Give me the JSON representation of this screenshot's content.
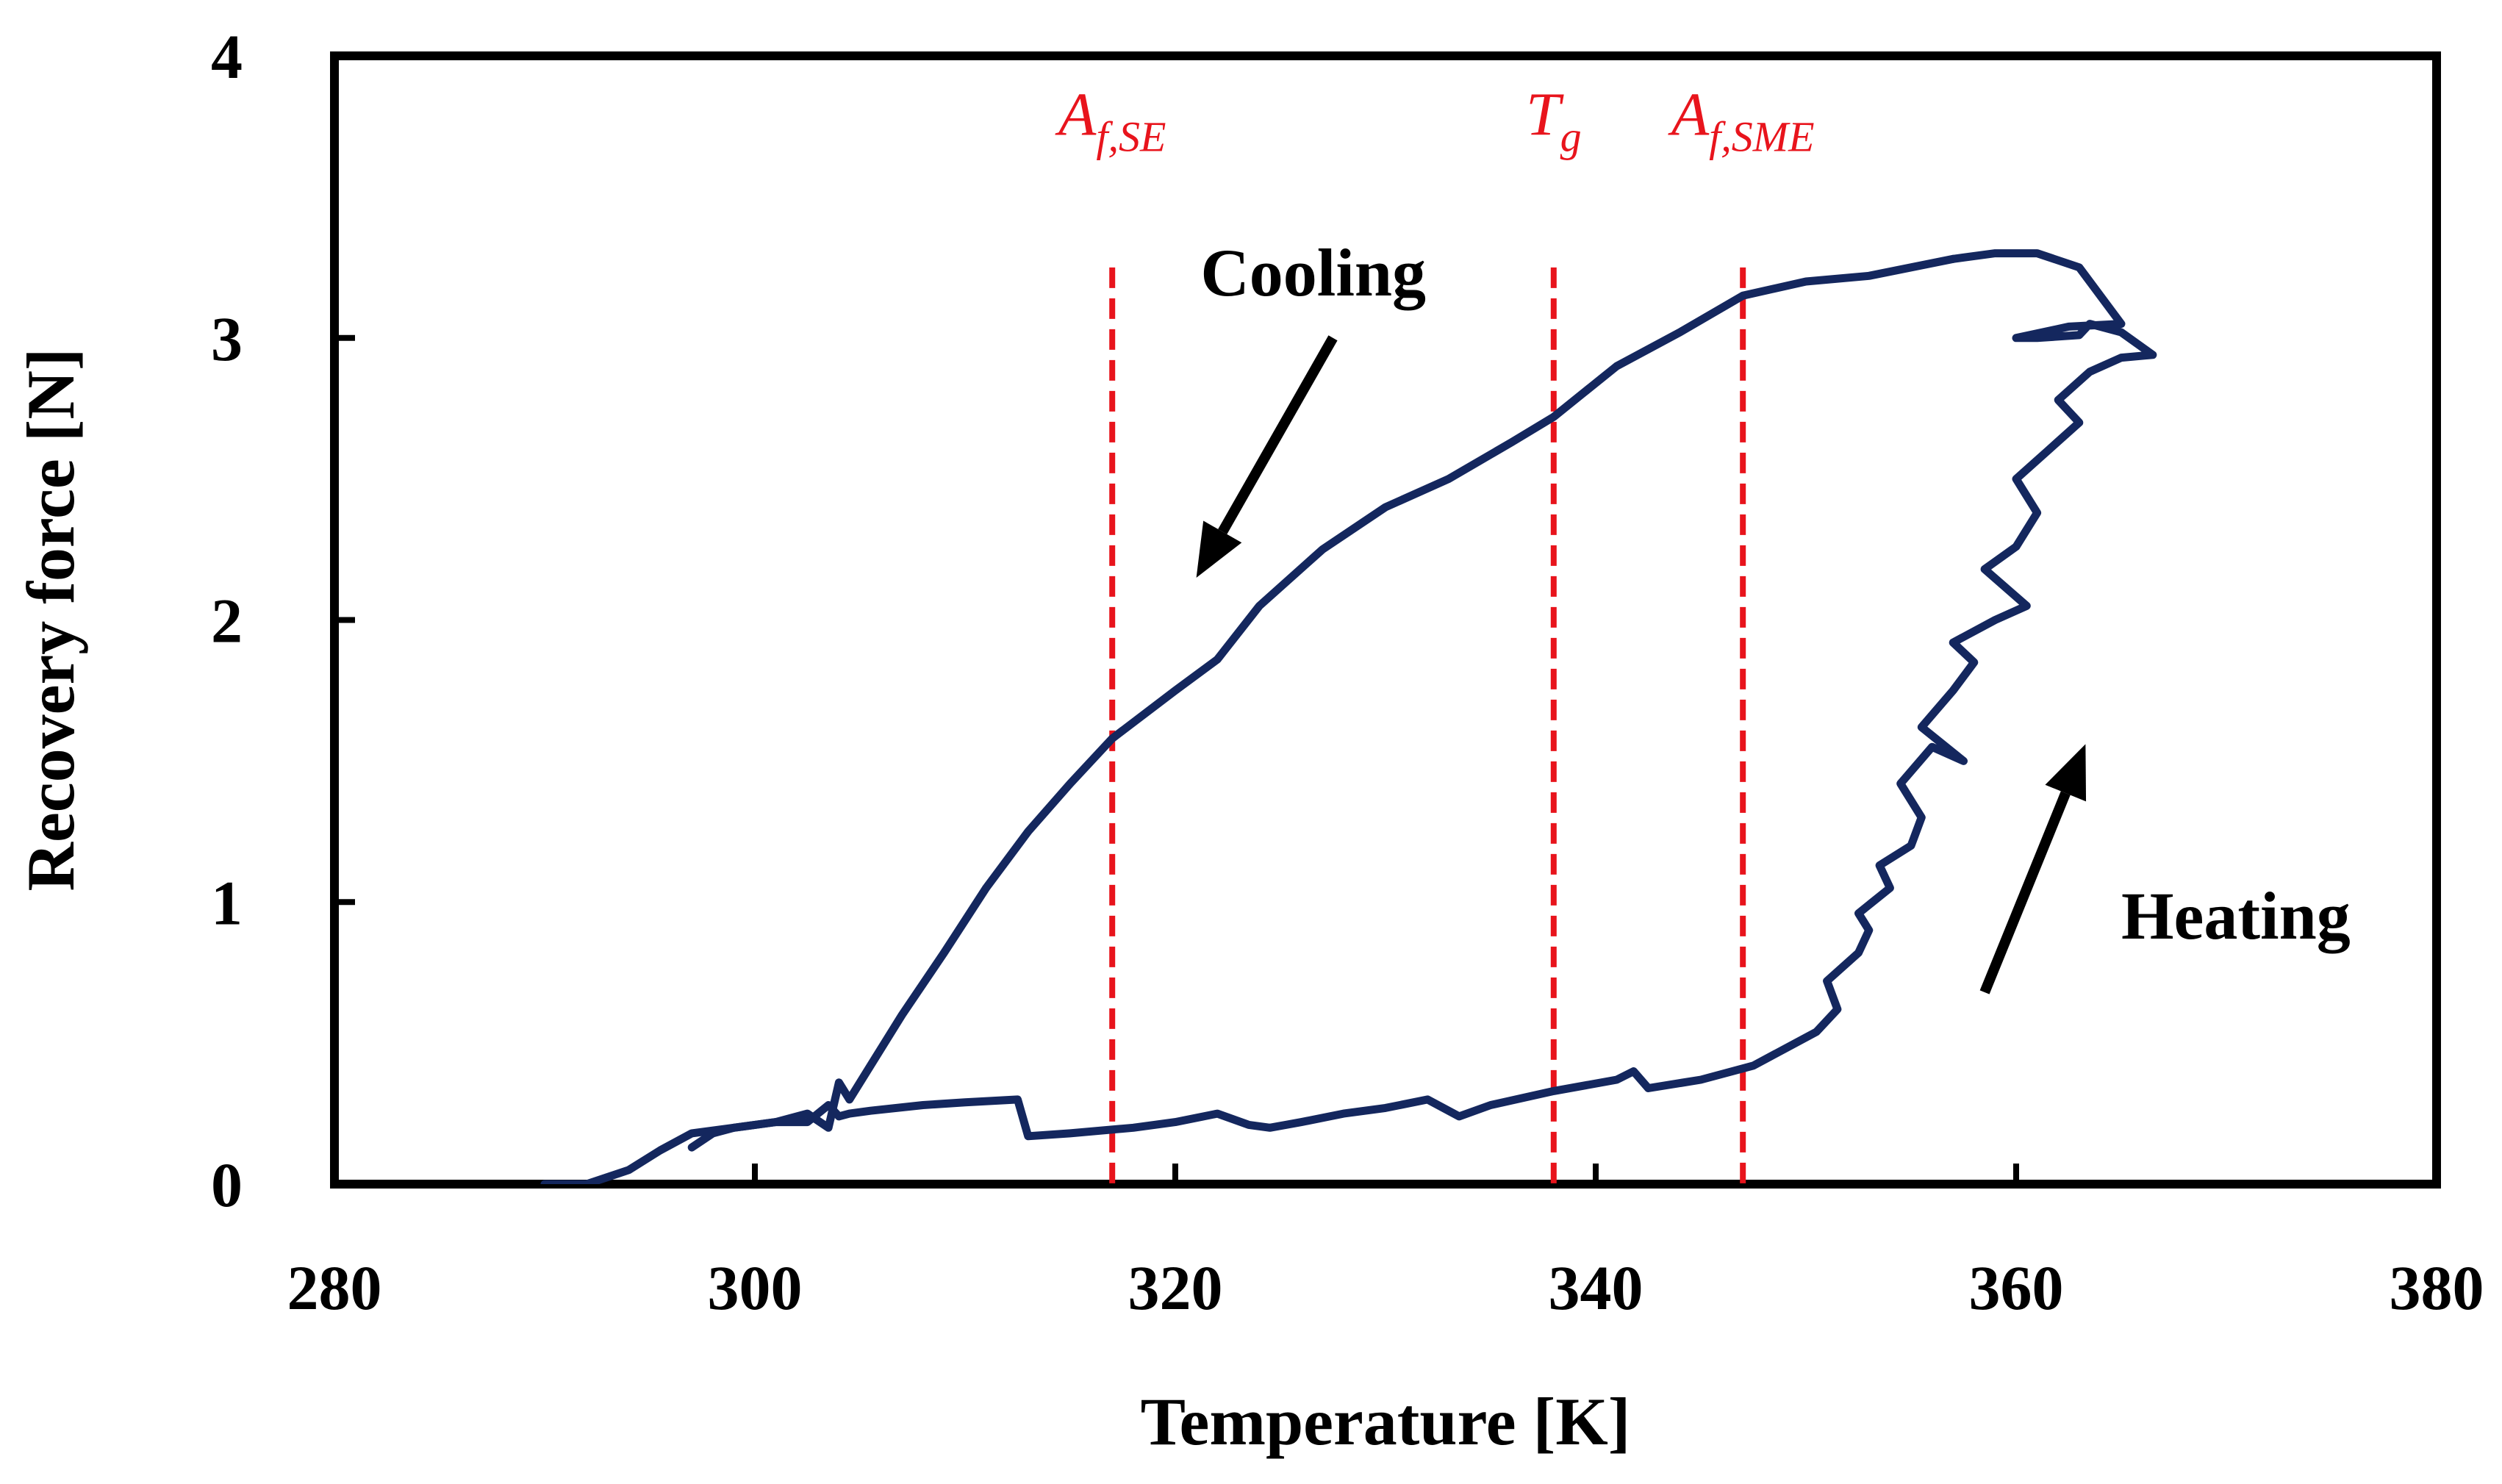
{
  "chart_data": {
    "type": "line",
    "title": "",
    "xlabel": "Temperature [K]",
    "ylabel": "Recovery force [N]",
    "xlim": [
      280,
      380
    ],
    "ylim": [
      0,
      4
    ],
    "x_ticks": [
      "280",
      "300",
      "320",
      "340",
      "360",
      "380"
    ],
    "y_ticks": [
      "0",
      "1",
      "2",
      "3",
      "4"
    ],
    "grid": false,
    "legend": "none",
    "series_color": "#14275E",
    "marker_color": "#E8141C",
    "series": [
      {
        "name": "Heating",
        "x": [
          290.0,
          292.0,
          294.0,
          295.5,
          297.0,
          299.0,
          301.0,
          302.5,
          303.5,
          304.0,
          304.5,
          305.5,
          308.0,
          310.0,
          312.5,
          313.0,
          315.0,
          318.0,
          320.0,
          322.0,
          323.5,
          324.5,
          326.0,
          328.0,
          330.0,
          332.0,
          333.5,
          335.0,
          338.0,
          341.0,
          341.8,
          342.5,
          345.0,
          347.5,
          349.0,
          350.5,
          351.5,
          351.0,
          352.5,
          353.0,
          352.5,
          354.0,
          353.5,
          355.0,
          355.5,
          354.5,
          356.0,
          357.5,
          355.5,
          357.0,
          358.0,
          357.0,
          359.0,
          360.5,
          358.5,
          360.0,
          361.0,
          360.0,
          361.5,
          363.0,
          362.0,
          363.5,
          365.0,
          366.5,
          365.0,
          363.5,
          363.0,
          361.0,
          360.0,
          362.5,
          365.0,
          363.0,
          361.0,
          359.0,
          357.0
        ],
        "y": [
          0.0,
          0.0,
          0.05,
          0.12,
          0.18,
          0.2,
          0.22,
          0.22,
          0.28,
          0.24,
          0.25,
          0.26,
          0.28,
          0.29,
          0.3,
          0.17,
          0.18,
          0.2,
          0.22,
          0.25,
          0.21,
          0.2,
          0.22,
          0.25,
          0.27,
          0.3,
          0.24,
          0.28,
          0.33,
          0.37,
          0.4,
          0.34,
          0.37,
          0.42,
          0.48,
          0.54,
          0.62,
          0.72,
          0.82,
          0.9,
          0.96,
          1.05,
          1.13,
          1.2,
          1.3,
          1.42,
          1.55,
          1.5,
          1.62,
          1.75,
          1.85,
          1.92,
          2.0,
          2.05,
          2.18,
          2.26,
          2.38,
          2.5,
          2.6,
          2.7,
          2.78,
          2.88,
          2.93,
          2.94,
          3.02,
          3.05,
          3.01,
          3.0,
          3.0,
          3.04,
          3.05,
          3.25,
          3.3,
          3.3,
          3.28
        ]
      },
      {
        "name": "Cooling",
        "x": [
          357.0,
          355.0,
          353.0,
          350.0,
          347.0,
          344.0,
          341.0,
          338.0,
          336.0,
          333.0,
          330.0,
          327.0,
          324.0,
          322.0,
          320.0,
          317.0,
          315.0,
          313.0,
          311.0,
          309.0,
          307.0,
          305.5,
          304.5,
          304.0,
          303.5,
          302.5,
          301.0,
          299.0,
          298.0,
          297.0
        ],
        "y": [
          3.28,
          3.25,
          3.22,
          3.2,
          3.15,
          3.02,
          2.9,
          2.72,
          2.63,
          2.5,
          2.4,
          2.25,
          2.05,
          1.86,
          1.75,
          1.58,
          1.42,
          1.25,
          1.05,
          0.82,
          0.6,
          0.42,
          0.3,
          0.36,
          0.2,
          0.25,
          0.22,
          0.2,
          0.18,
          0.13
        ]
      }
    ],
    "vertical_markers": [
      {
        "x": 317,
        "main": "A",
        "sub": "f,SE"
      },
      {
        "x": 338,
        "main": "T",
        "sub": "g"
      },
      {
        "x": 347,
        "main": "A",
        "sub": "f,SME"
      }
    ],
    "annotations": [
      {
        "text": "Cooling",
        "arrow_from": [
          327.5,
          3.0
        ],
        "arrow_to": [
          321.0,
          2.15
        ]
      },
      {
        "text": "Heating",
        "arrow_from": [
          358.5,
          0.68
        ],
        "arrow_to": [
          363.3,
          1.56
        ]
      }
    ]
  }
}
